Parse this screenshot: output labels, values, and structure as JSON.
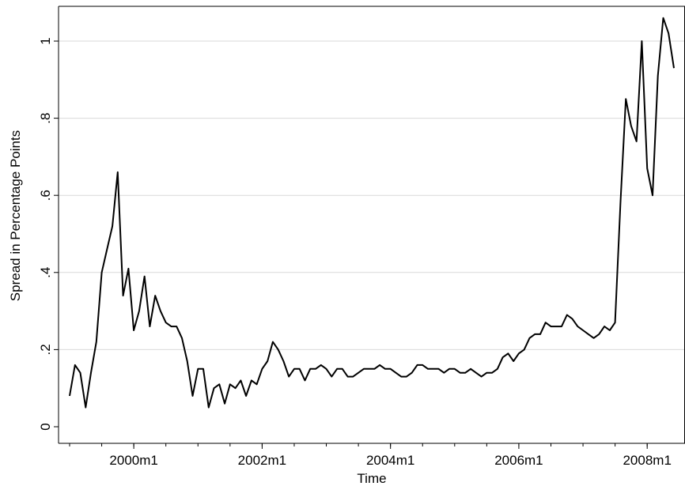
{
  "chart_data": {
    "type": "line",
    "title": "",
    "xlabel": "Time",
    "ylabel": "Spread in Percentage Points",
    "x_range": [
      "1999m1",
      "2008m6"
    ],
    "ylim": [
      0,
      1.08
    ],
    "y_ticks": [
      0,
      0.2,
      0.4,
      0.6,
      0.8,
      1.0
    ],
    "y_tick_labels": [
      "0",
      ".2",
      ".4",
      ".6",
      ".8",
      "1"
    ],
    "x_ticks": [
      "2000m1",
      "2002m1",
      "2004m1",
      "2006m1",
      "2008m1"
    ],
    "grid": "horizontal",
    "legend": "none",
    "line_color": "#000000",
    "series": [
      {
        "start": "1999m1",
        "frequency": "monthly",
        "values": [
          0.08,
          0.16,
          0.14,
          0.05,
          0.14,
          0.22,
          0.4,
          0.46,
          0.52,
          0.66,
          0.34,
          0.41,
          0.25,
          0.3,
          0.39,
          0.26,
          0.34,
          0.3,
          0.27,
          0.26,
          0.26,
          0.23,
          0.17,
          0.08,
          0.15,
          0.15,
          0.05,
          0.1,
          0.11,
          0.06,
          0.11,
          0.1,
          0.12,
          0.08,
          0.12,
          0.11,
          0.15,
          0.17,
          0.22,
          0.2,
          0.17,
          0.13,
          0.15,
          0.15,
          0.12,
          0.15,
          0.15,
          0.16,
          0.15,
          0.13,
          0.15,
          0.15,
          0.13,
          0.13,
          0.14,
          0.15,
          0.15,
          0.15,
          0.16,
          0.15,
          0.15,
          0.14,
          0.13,
          0.13,
          0.14,
          0.16,
          0.16,
          0.15,
          0.15,
          0.15,
          0.14,
          0.15,
          0.15,
          0.14,
          0.14,
          0.15,
          0.14,
          0.13,
          0.14,
          0.14,
          0.15,
          0.18,
          0.19,
          0.17,
          0.19,
          0.2,
          0.23,
          0.24,
          0.24,
          0.27,
          0.26,
          0.26,
          0.26,
          0.29,
          0.28,
          0.26,
          0.25,
          0.24,
          0.23,
          0.24,
          0.26,
          0.25,
          0.27,
          0.58,
          0.85,
          0.78,
          0.74,
          1.0,
          0.67,
          0.6,
          0.91,
          1.06,
          1.02,
          0.93
        ]
      }
    ]
  }
}
